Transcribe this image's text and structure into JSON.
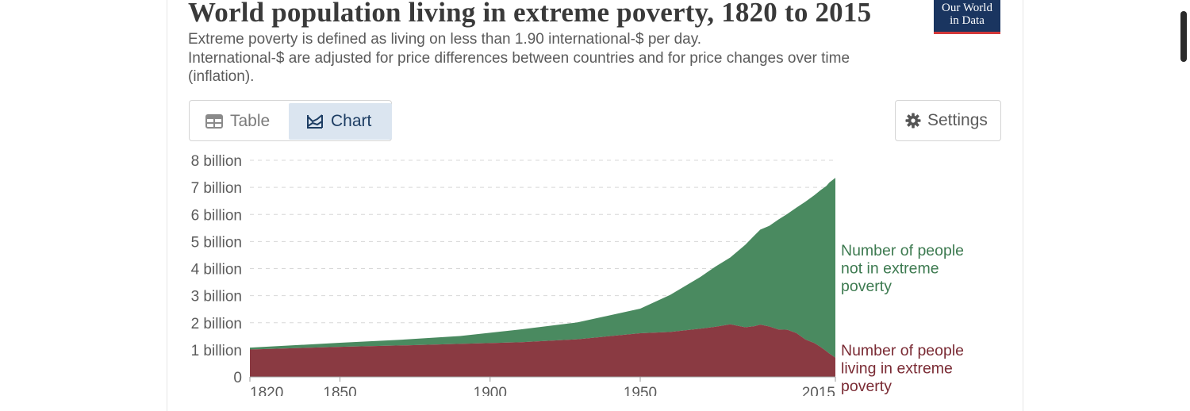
{
  "header": {
    "title": "World population living in extreme poverty, 1820 to 2015",
    "subtitle_line1": "Extreme poverty is defined as living on less than 1.90 international-$ per day.",
    "subtitle_line2": "International-$ are adjusted for price differences between countries and for price changes over time (inflation).",
    "logo_line1": "Our World",
    "logo_line2": "in Data"
  },
  "tabs": {
    "table_label": "Table",
    "chart_label": "Chart",
    "active": "Chart"
  },
  "settings_label": "Settings",
  "colors": {
    "not_poor": "#4a8a60",
    "poor": "#8a3a42",
    "accent": "#1a3560",
    "logo_stripe": "#d2383a"
  },
  "chart_data": {
    "type": "area",
    "stacked": true,
    "title": "World population living in extreme poverty, 1820 to 2015",
    "ylim": [
      0,
      8000000000
    ],
    "y_ticks": [
      {
        "value": 0,
        "label": "0"
      },
      {
        "value": 1000000000,
        "label": "1 billion"
      },
      {
        "value": 2000000000,
        "label": "2 billion"
      },
      {
        "value": 3000000000,
        "label": "3 billion"
      },
      {
        "value": 4000000000,
        "label": "4 billion"
      },
      {
        "value": 5000000000,
        "label": "5 billion"
      },
      {
        "value": 6000000000,
        "label": "6 billion"
      },
      {
        "value": 7000000000,
        "label": "7 billion"
      },
      {
        "value": 8000000000,
        "label": "8 billion"
      }
    ],
    "xlim": [
      1820,
      2015
    ],
    "x_ticks": [
      {
        "value": 1820,
        "label": "1820"
      },
      {
        "value": 1850,
        "label": "1850"
      },
      {
        "value": 1900,
        "label": "1900"
      },
      {
        "value": 1950,
        "label": "1950"
      },
      {
        "value": 2015,
        "label": "2015"
      }
    ],
    "grid": "horizontal-dashed",
    "legend": "right, inline labels",
    "x": [
      1820,
      1850,
      1870,
      1890,
      1910,
      1929,
      1950,
      1960,
      1970,
      1975,
      1980,
      1985,
      1988,
      1990,
      1993,
      1996,
      1999,
      2002,
      2005,
      2008,
      2010,
      2012,
      2013,
      2015
    ],
    "series": [
      {
        "name": "Number of people living in extreme poverty",
        "color": "#8a3a42",
        "values": [
          1010000000.0,
          1110000000.0,
          1160000000.0,
          1220000000.0,
          1280000000.0,
          1390000000.0,
          1610000000.0,
          1660000000.0,
          1780000000.0,
          1850000000.0,
          1940000000.0,
          1830000000.0,
          1870000000.0,
          1930000000.0,
          1860000000.0,
          1750000000.0,
          1740000000.0,
          1620000000.0,
          1380000000.0,
          1250000000.0,
          1110000000.0,
          950000000.0,
          860000000.0,
          710000000.0
        ]
      },
      {
        "name": "Number of people not in extreme poverty",
        "color": "#4a8a60",
        "values": [
          70000000.0,
          150000000.0,
          210000000.0,
          290000000.0,
          470000000.0,
          620000000.0,
          910000000.0,
          1370000000.0,
          1910000000.0,
          2220000000.0,
          2470000000.0,
          3050000000.0,
          3350000000.0,
          3510000000.0,
          3720000000.0,
          4060000000.0,
          4280000000.0,
          4630000000.0,
          5090000000.0,
          5460000000.0,
          5780000000.0,
          6100000000.0,
          6320000000.0,
          6640000000.0
        ]
      }
    ],
    "series_labels": {
      "not_poor": [
        "Number of people",
        "not in extreme",
        "poverty"
      ],
      "poor": [
        "Number of people",
        "living in extreme",
        "poverty"
      ]
    }
  }
}
